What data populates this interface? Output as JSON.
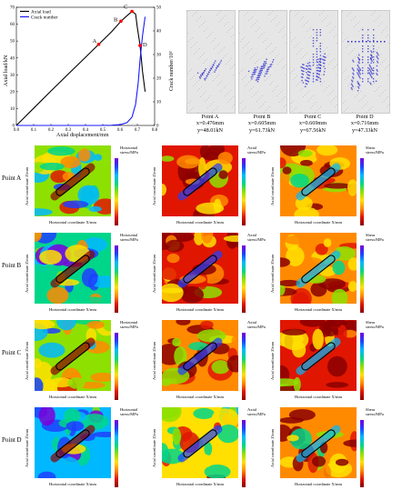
{
  "chart_data": {
    "type": "line",
    "xlabel": "Axial displacement/mm",
    "ylabel_left": "Axial load/kN",
    "ylabel_right": "Crack number/10³",
    "xlim": [
      0.0,
      0.8
    ],
    "ylim_left": [
      0,
      70
    ],
    "ylim_right": [
      0,
      50
    ],
    "x_ticks": [
      "0.0",
      "0.1",
      "0.2",
      "0.3",
      "0.4",
      "0.5",
      "0.6",
      "0.7",
      "0.8"
    ],
    "y_ticks_left": [
      "0",
      "10",
      "20",
      "30",
      "40",
      "50",
      "60",
      "70"
    ],
    "y_ticks_right": [
      "0",
      "10",
      "20",
      "30",
      "40",
      "50"
    ],
    "legend": [
      "Axial load",
      "Crack number"
    ],
    "legend_position": "top-left",
    "series": [
      {
        "name": "Axial load",
        "color": "#000000",
        "x": [
          0.0,
          0.1,
          0.2,
          0.3,
          0.4,
          0.476,
          0.55,
          0.605,
          0.64,
          0.669,
          0.69,
          0.7,
          0.716,
          0.73,
          0.745
        ],
        "y": [
          0,
          10.2,
          20.4,
          30.4,
          40.4,
          48.01,
          55.4,
          61.73,
          65.0,
          67.56,
          66.0,
          58.0,
          47.33,
          32.0,
          20.0
        ]
      },
      {
        "name": "Crack number",
        "color": "#1a1aff",
        "x": [
          0.0,
          0.3,
          0.476,
          0.55,
          0.605,
          0.64,
          0.669,
          0.69,
          0.705,
          0.716,
          0.73,
          0.745
        ],
        "y": [
          0,
          0,
          0,
          0.1,
          0.4,
          1.2,
          3.5,
          9.0,
          18.0,
          28.0,
          38.0,
          46.0
        ]
      }
    ],
    "points": [
      {
        "label": "A",
        "x": 0.476,
        "y": 48.01
      },
      {
        "label": "B",
        "x": 0.605,
        "y": 61.73
      },
      {
        "label": "C",
        "x": 0.669,
        "y": 67.56
      },
      {
        "label": "D",
        "x": 0.716,
        "y": 47.33
      }
    ]
  },
  "snapshots": [
    {
      "name": "Point A",
      "x_text": "x=0.476mm",
      "y_text": "y=48.01kN",
      "crack_level": 0.15
    },
    {
      "name": "Point B",
      "x_text": "x=0.605mm",
      "y_text": "y=61.73kN",
      "crack_level": 0.3
    },
    {
      "name": "Point C",
      "x_text": "x=0.669mm",
      "y_text": "y=67.56kN",
      "crack_level": 0.65
    },
    {
      "name": "Point D",
      "x_text": "x=0.716mm",
      "y_text": "y=47.33kN",
      "crack_level": 1.0
    }
  ],
  "maps": {
    "rows": [
      "Point A",
      "Point B",
      "Point C",
      "Point D"
    ],
    "columns": [
      {
        "title": "Horizontal stress/MPa",
        "title_line1": "Horizontal",
        "title_line2": "stress/MPa"
      },
      {
        "title": "Axial stress/MPa",
        "title_line1": "Axial",
        "title_line2": "stress/MPa"
      },
      {
        "title": "Shear stress/MPa",
        "title_line1": "Shear",
        "title_line2": "stress/MPa"
      }
    ],
    "xlabel": "Horizontal coordinate X/mm",
    "ylabel": "Axial coordinate Z/mm"
  }
}
